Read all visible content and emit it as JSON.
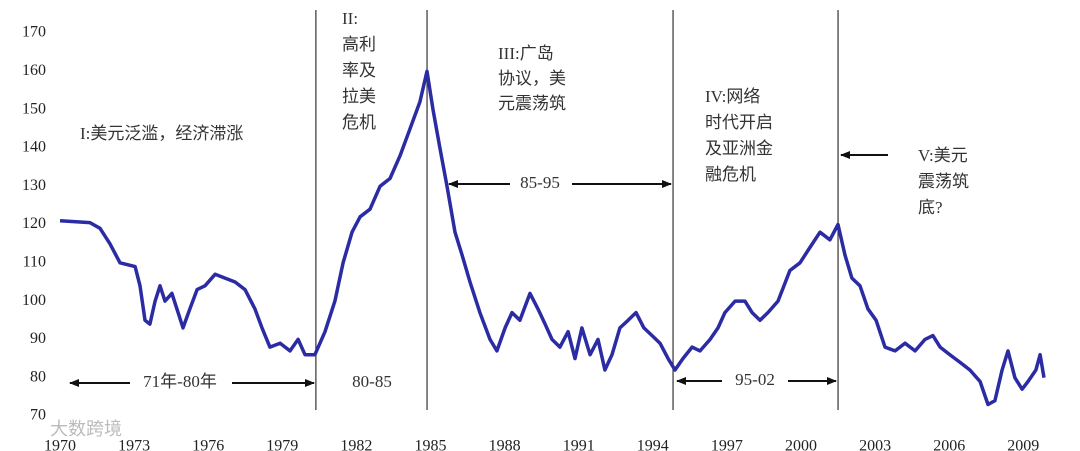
{
  "chart_data": {
    "type": "line",
    "x": [
      1970.0,
      1971.21,
      1971.62,
      1972.02,
      1972.43,
      1973.04,
      1973.24,
      1973.44,
      1973.64,
      1973.85,
      1974.05,
      1974.25,
      1974.53,
      1974.78,
      1974.98,
      1975.26,
      1975.55,
      1975.87,
      1976.28,
      1976.68,
      1977.09,
      1977.49,
      1977.89,
      1978.18,
      1978.5,
      1978.91,
      1979.31,
      1979.64,
      1979.92,
      1980.32,
      1980.73,
      1981.13,
      1981.46,
      1981.82,
      1982.15,
      1982.55,
      1982.96,
      1983.36,
      1983.77,
      1984.17,
      1984.57,
      1984.86,
      1985.1,
      1985.38,
      1985.67,
      1985.99,
      1986.28,
      1986.6,
      1987.0,
      1987.41,
      1987.69,
      1988.02,
      1988.3,
      1988.62,
      1989.03,
      1989.35,
      1989.64,
      1989.92,
      1990.24,
      1990.57,
      1990.85,
      1991.13,
      1991.46,
      1991.78,
      1992.06,
      1992.35,
      1992.67,
      1993.0,
      1993.32,
      1993.64,
      1993.97,
      1994.29,
      1994.62,
      1994.9,
      1995.22,
      1995.59,
      1995.91,
      1996.32,
      1996.64,
      1996.92,
      1997.33,
      1997.73,
      1998.02,
      1998.34,
      1998.66,
      1999.07,
      1999.55,
      1999.96,
      2000.36,
      2000.77,
      2001.17,
      2001.5,
      2001.78,
      2002.06,
      2002.39,
      2002.71,
      2003.04,
      2003.4,
      2003.81,
      2004.21,
      2004.62,
      2005.02,
      2005.34,
      2005.63,
      2006.03,
      2006.44,
      2006.84,
      2007.25,
      2007.57,
      2007.85,
      2008.14,
      2008.38,
      2008.66,
      2008.95,
      2009.19,
      2009.51,
      2009.68,
      2009.84
    ],
    "series": [
      {
        "color": "#2b2ba3",
        "values": [
          121,
          120.5,
          119,
          115,
          110,
          109,
          104,
          95,
          94,
          100,
          104,
          100,
          102,
          97,
          93,
          98,
          103,
          104,
          107,
          106,
          105,
          103,
          98,
          93,
          88,
          89,
          87,
          90,
          86,
          86,
          92,
          100,
          110,
          118,
          122,
          124,
          130,
          132,
          138,
          145,
          152,
          160,
          150,
          140,
          130,
          118,
          112,
          105,
          97,
          90,
          87,
          93,
          97,
          95,
          102,
          98,
          94,
          90,
          88,
          92,
          85,
          93,
          86,
          90,
          82,
          86,
          93,
          95,
          97,
          93,
          91,
          89,
          85,
          82,
          85,
          88,
          87,
          90,
          93,
          97,
          100,
          100,
          97,
          95,
          97,
          100,
          108,
          110,
          114,
          118,
          116,
          120,
          112,
          106,
          104,
          98,
          95,
          88,
          87,
          89,
          87,
          90,
          91,
          88,
          86,
          84,
          82,
          79,
          73,
          74,
          82,
          87,
          80,
          77,
          79,
          82,
          86,
          80
        ]
      }
    ],
    "xlim": [
      1970,
      2010
    ],
    "xticks": [
      1970,
      1973,
      1976,
      1979,
      1982,
      1985,
      1988,
      1991,
      1994,
      1997,
      2000,
      2003,
      2006,
      2009
    ],
    "ylim": [
      70,
      170
    ],
    "yticks": [
      70,
      80,
      90,
      100,
      110,
      120,
      130,
      140,
      150,
      160,
      170
    ],
    "grid": false,
    "dividers": [
      1980.36,
      1984.86,
      1994.82,
      2001.5
    ],
    "annotations": [
      [
        "I:美元泛滥，经济滞涨"
      ],
      [
        "II:",
        "高利",
        "率及",
        "拉美",
        "危机"
      ],
      [
        "III:广岛",
        "协议，美",
        "元震荡筑"
      ],
      [
        "IV:网络",
        "时代开启",
        "及亚洲金",
        "融危机"
      ],
      [
        "V:美元",
        "震荡筑",
        "底?"
      ]
    ],
    "periods": [
      "71年-80年",
      "80-85",
      "85-95",
      "95-02"
    ],
    "watermark": "大数跨境"
  }
}
